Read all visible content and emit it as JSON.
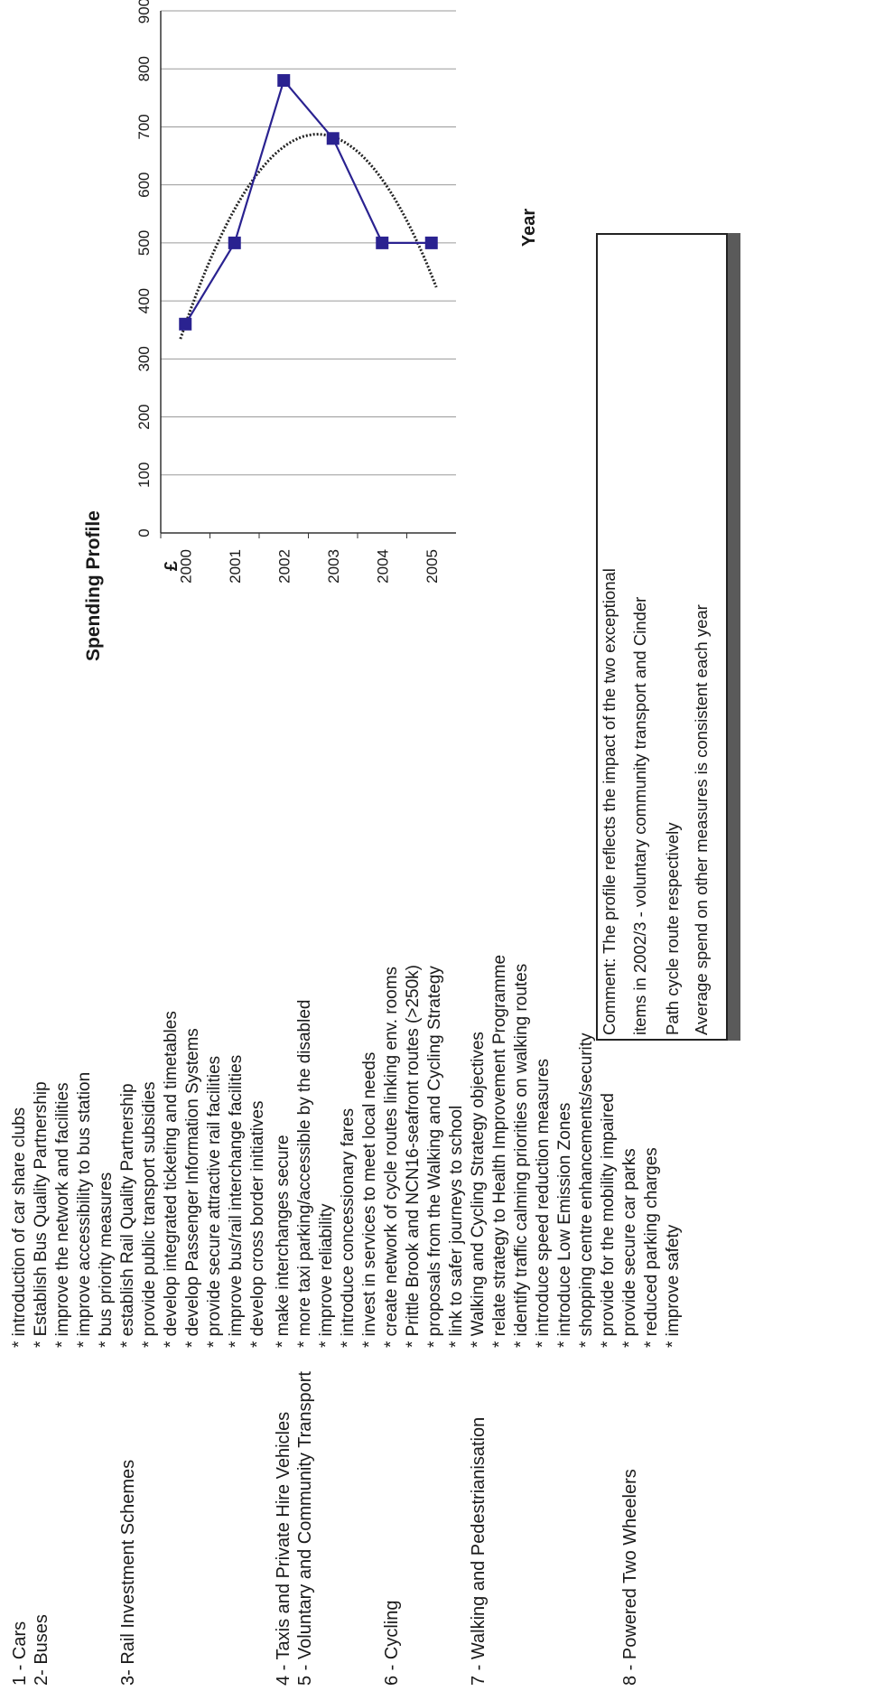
{
  "categories": [
    {
      "id": "cars",
      "label": "1 - Cars",
      "measures": [
        "* introduction of car share clubs"
      ]
    },
    {
      "id": "buses",
      "label": "2- Buses",
      "measures": [
        "* Establish Bus Quality Partnership",
        "* improve the network and facilities",
        "* improve accessibility to bus station",
        "* bus priority measures"
      ]
    },
    {
      "id": "rail",
      "label": "3- Rail Investment Schemes",
      "measures": [
        "* establish Rail Quality Partnership",
        "* provide public transport subsidies",
        "* develop integrated ticketing and timetables",
        "* develop Passenger Information Systems",
        "* provide secure attractive rail facilities",
        "* improve bus/rail interchange facilities",
        "* develop cross border initiatives"
      ]
    },
    {
      "id": "taxis",
      "label": "4 - Taxis and Private Hire Vehicles",
      "measures": [
        "* make interchanges secure"
      ]
    },
    {
      "id": "voluntary",
      "label": "5 - Voluntary and Community Transport",
      "measures": [
        "* more taxi parking/accessible by the disabled",
        "* improve reliability",
        "* introduce concessionary fares",
        "* invest in services to meet local needs"
      ]
    },
    {
      "id": "cycling",
      "label": "6 - Cycling",
      "measures": [
        "* create network of cycle routes linking env. rooms",
        "* Prittle Brook and NCN16-seafront routes (>250k)",
        "* proposals from the Walking and Cycling Strategy",
        "* link to safer journeys to school"
      ]
    },
    {
      "id": "walking",
      "label": "7 - Walking and Pedestrianisation",
      "measures": [
        "* Walking and Cycling Strategy objectives",
        "* relate strategy to Health Improvement Programme",
        "* identify traffic calming priorities on walking routes",
        "* introduce speed reduction measures",
        "* introduce Low Emission Zones",
        "* shopping centre enhancements/security",
        "* provide for the mobility impaired"
      ]
    },
    {
      "id": "ptw",
      "label": "8 - Powered Two Wheelers",
      "measures": [
        "* provide secure car parks",
        "* reduced parking charges",
        "* improve safety"
      ]
    }
  ],
  "chart_data": {
    "type": "line",
    "title": "Spending Profile",
    "xlabel": "Year",
    "ylabel": "£",
    "categories": [
      "2000",
      "2001",
      "2002",
      "2003",
      "2004",
      "2005"
    ],
    "series": [
      {
        "values": [
          360,
          500,
          780,
          680,
          500,
          500
        ],
        "color": "#2a2290",
        "marker": "square"
      }
    ],
    "trendline": {
      "style": "dotted",
      "color": "#222222",
      "type": "polynomial"
    },
    "ylim": [
      0,
      900
    ],
    "yticks": [
      0,
      100,
      200,
      300,
      400,
      500,
      600,
      700,
      800,
      900
    ],
    "grid": true
  },
  "comment": {
    "lines": [
      "Comment: The profile reflects the impact of the two exceptional",
      "items in 2002/3 - voluntary community transport and Cinder",
      "Path cycle route respectively",
      "Average spend on other measures is consistent each year"
    ]
  }
}
